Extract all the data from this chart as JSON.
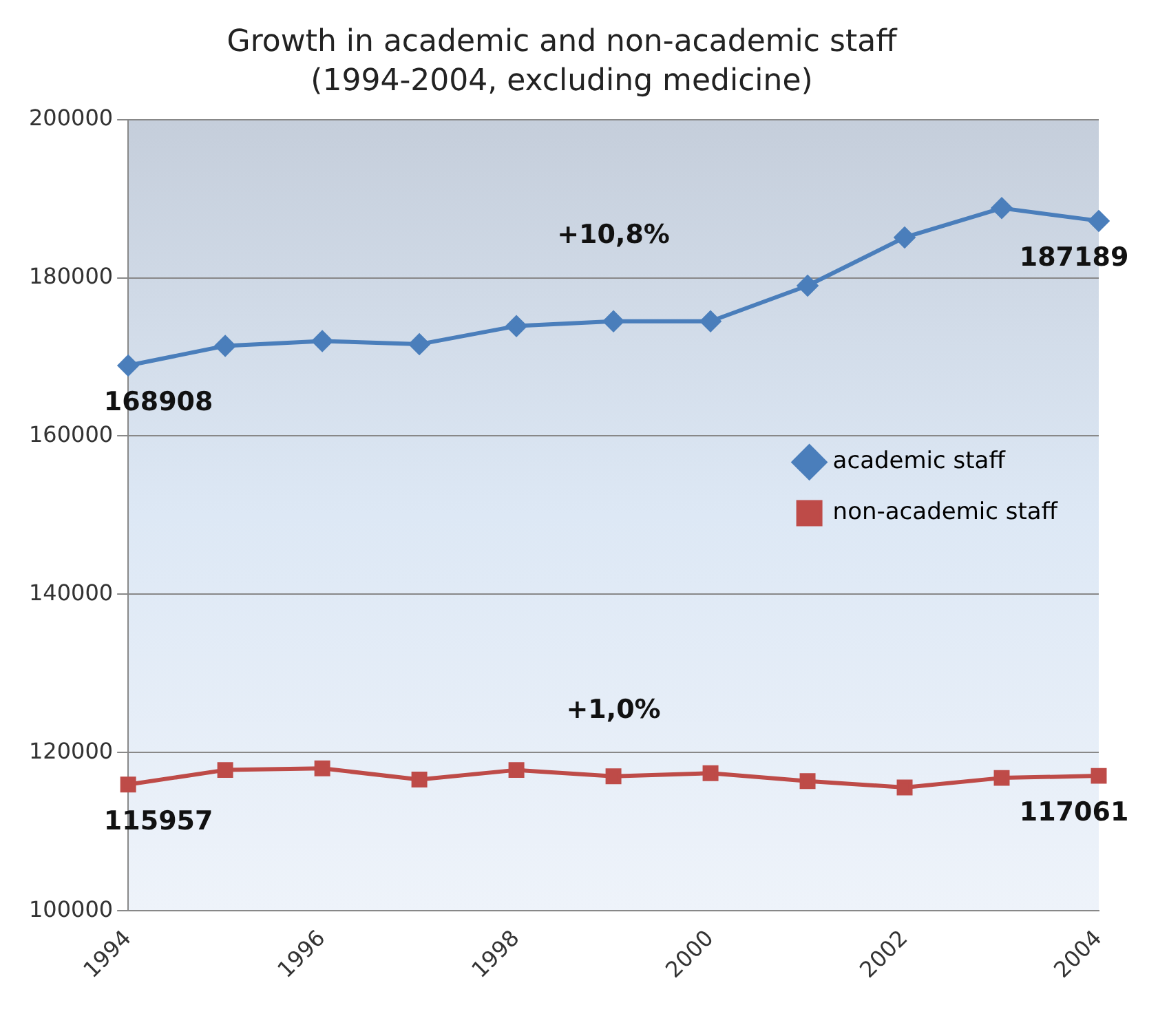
{
  "chart_data": {
    "type": "line",
    "title": "Growth in academic and non-academic staff",
    "subtitle": "(1994-2004, excluding medicine)",
    "categories": [
      "1994",
      null,
      "1996",
      null,
      "1998",
      null,
      "2000",
      null,
      "2002",
      null,
      "2004"
    ],
    "series": [
      {
        "name": "academic staff",
        "color": "#4a7ebb",
        "marker": "diamond",
        "values": [
          168908,
          171400,
          172000,
          171600,
          173900,
          174500,
          174500,
          179000,
          185100,
          188800,
          187189
        ],
        "value_labels": [
          "168908",
          null,
          null,
          null,
          null,
          null,
          null,
          null,
          null,
          null,
          "187189"
        ]
      },
      {
        "name": "non-academic staff",
        "color": "#be4b48",
        "marker": "square",
        "values": [
          115957,
          117800,
          118000,
          116600,
          117800,
          117000,
          117400,
          116400,
          115600,
          116800,
          117061
        ],
        "value_labels": [
          "115957",
          null,
          null,
          null,
          null,
          null,
          null,
          null,
          null,
          null,
          "117061"
        ]
      }
    ],
    "annotations": [
      "+10,8%",
      "+1,0%"
    ],
    "ylim": [
      100000,
      200000
    ],
    "yticks": [
      100000,
      120000,
      140000,
      160000,
      180000,
      200000
    ],
    "grid": "y",
    "legend": "right",
    "line_style": "solid"
  }
}
